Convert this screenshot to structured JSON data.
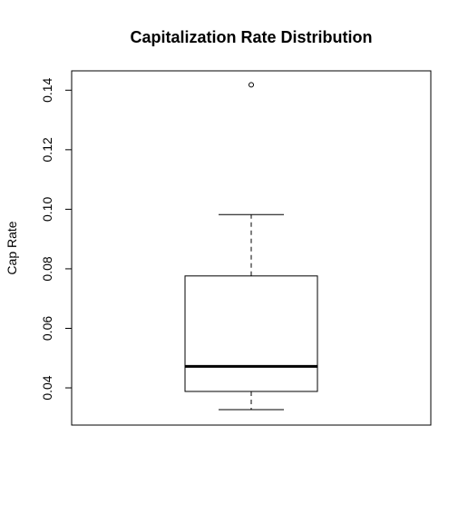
{
  "chart_data": {
    "type": "boxplot",
    "title": "Capitalization Rate Distribution",
    "xlabel": "",
    "ylabel": "Cap Rate",
    "ylim": [
      0.0275,
      0.1465
    ],
    "yticks": [
      0.04,
      0.06,
      0.08,
      0.1,
      0.12,
      0.14
    ],
    "ytick_labels": [
      "0.04",
      "0.06",
      "0.08",
      "0.10",
      "0.12",
      "0.14"
    ],
    "box": {
      "whisker_low": 0.0327,
      "q1": 0.0388,
      "median": 0.0472,
      "q3": 0.0776,
      "whisker_high": 0.0982
    },
    "outliers": [
      0.1418
    ],
    "grid": false,
    "legend": "none"
  }
}
